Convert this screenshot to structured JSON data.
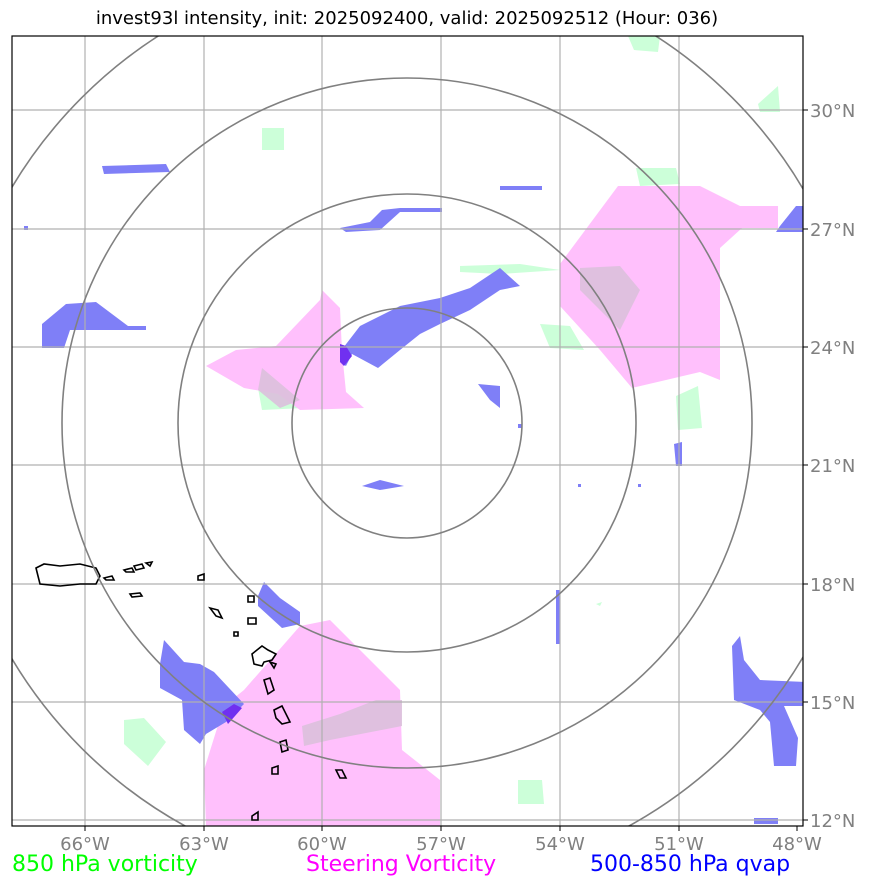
{
  "title": "invest93l intensity, init: 2025092400, valid: 2025092512 (Hour: 036)",
  "map": {
    "lon_ticks": [
      "66°W",
      "63°W",
      "60°W",
      "57°W",
      "54°W",
      "51°W",
      "48°W"
    ],
    "lat_ticks": [
      "30°N",
      "27°N",
      "24°N",
      "21°N",
      "18°N",
      "15°N",
      "12°N"
    ],
    "range_rings_count": 4,
    "colors": {
      "vort850": "#ccffd9",
      "steering": "#ffc0fc",
      "qvap": "#7f7ff7",
      "ring": "#808080",
      "grid": "#b0b0b0",
      "tick_text": "#808080"
    }
  },
  "legend": [
    {
      "label": "850 hPa vorticity",
      "color": "#00ff00"
    },
    {
      "label": "Steering Vorticity",
      "color": "#ff00ff"
    },
    {
      "label": "500-850 hPa qvap",
      "color": "#0000ff"
    }
  ]
}
